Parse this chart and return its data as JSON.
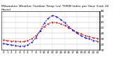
{
  "title": "Milwaukee Weather Outdoor Temp (vs) THSW Index per Hour (Last 24 Hours)",
  "background_color": "#ffffff",
  "grid_color": "#aaaaaa",
  "hours": [
    0,
    1,
    2,
    3,
    4,
    5,
    6,
    7,
    8,
    9,
    10,
    11,
    12,
    13,
    14,
    15,
    16,
    17,
    18,
    19,
    20,
    21,
    22,
    23
  ],
  "temp_color": "#cc0000",
  "thsw_color": "#0000cc",
  "temp_values": [
    28,
    27,
    26,
    26,
    25,
    25,
    27,
    30,
    36,
    44,
    52,
    57,
    60,
    59,
    57,
    54,
    50,
    46,
    42,
    39,
    36,
    34,
    32,
    31
  ],
  "thsw_values": [
    22,
    20,
    19,
    18,
    17,
    17,
    19,
    24,
    32,
    44,
    58,
    67,
    72,
    70,
    65,
    59,
    52,
    46,
    40,
    36,
    32,
    30,
    27,
    26
  ],
  "ylim": [
    10,
    80
  ],
  "title_fontsize": 3.2,
  "tick_fontsize": 2.8,
  "line_width": 0.7,
  "marker_size": 1.0,
  "figsize": [
    1.6,
    0.87
  ],
  "dpi": 100,
  "vgrid_positions": [
    0,
    3,
    6,
    9,
    12,
    15,
    18,
    21,
    23
  ]
}
